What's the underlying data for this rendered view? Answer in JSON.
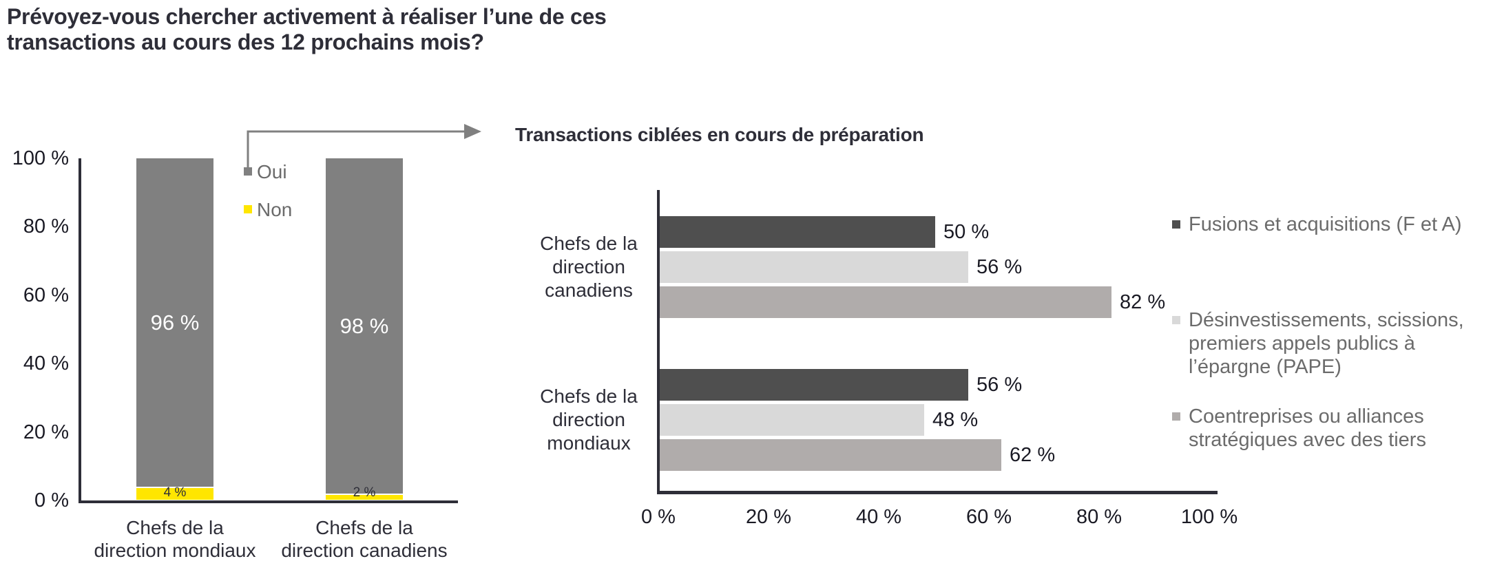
{
  "page": {
    "title_lines": [
      "Prévoyez-vous chercher activement à réaliser l’une de ces",
      "transactions au cours des 12 prochains mois?"
    ],
    "title_color": "#2e2e38",
    "background": "#ffffff"
  },
  "connector_arrow": {
    "color": "#808080"
  },
  "chart_data": [
    {
      "type": "bar",
      "subtype": "stacked-vertical-100pct",
      "title": "",
      "categories": [
        "Chefs de la direction mondiaux",
        "Chefs de la direction canadiens"
      ],
      "category_lines": [
        [
          "Chefs de la",
          "direction mondiaux"
        ],
        [
          "Chefs de la",
          "direction canadiens"
        ]
      ],
      "series": [
        {
          "name": "Oui",
          "color": "#808080",
          "values": [
            96,
            98
          ]
        },
        {
          "name": "Non",
          "color": "#ffe600",
          "values": [
            4,
            2
          ]
        }
      ],
      "value_suffix": " %",
      "ylim": [
        0,
        100
      ],
      "y_ticks": [
        0,
        20,
        40,
        60,
        80,
        100
      ],
      "y_tick_labels": [
        "0 %",
        "20 %",
        "40 %",
        "60 %",
        "80 %",
        "100 %"
      ],
      "grid": false,
      "legend_position": "inside-right-of-first-bar",
      "axis_color": "#2e2e38",
      "data_label_colors": {
        "Oui": "#ffffff",
        "Non": "#2e2e38"
      }
    },
    {
      "type": "bar",
      "subtype": "horizontal-grouped",
      "title": "Transactions ciblées en cours de préparation",
      "categories": [
        "Chefs de la direction canadiens",
        "Chefs de la direction mondiaux"
      ],
      "category_lines": [
        [
          "Chefs de la",
          "direction",
          "canadiens"
        ],
        [
          "Chefs de la",
          "direction",
          "mondiaux"
        ]
      ],
      "series": [
        {
          "name": "Fusions et acquisitions (F et A)",
          "label_lines": [
            "Fusions et acquisitions (F et A)"
          ],
          "color": "#4f4f4f",
          "values": [
            50,
            56
          ]
        },
        {
          "name": "Désinvestissements, scissions, premiers appels publics à l’épargne (PAPE)",
          "label_lines": [
            "Désinvestissements, scissions,",
            "premiers appels publics à",
            "l’épargne (PAPE)"
          ],
          "color": "#d9d9d9",
          "values": [
            56,
            48
          ]
        },
        {
          "name": "Coentreprises ou alliances stratégiques avec des tiers",
          "label_lines": [
            "Coentreprises ou alliances",
            "stratégiques avec des tiers"
          ],
          "color": "#b0acab",
          "values": [
            82,
            62
          ]
        }
      ],
      "value_suffix": " %",
      "xlim": [
        0,
        100
      ],
      "x_ticks": [
        0,
        20,
        40,
        60,
        80,
        100
      ],
      "x_tick_labels": [
        "0 %",
        "20 %",
        "40 %",
        "60 %",
        "80 %",
        "100 %"
      ],
      "grid": false,
      "legend_position": "right",
      "axis_color": "#2e2e38",
      "value_label_color": "#1a1a24"
    }
  ]
}
